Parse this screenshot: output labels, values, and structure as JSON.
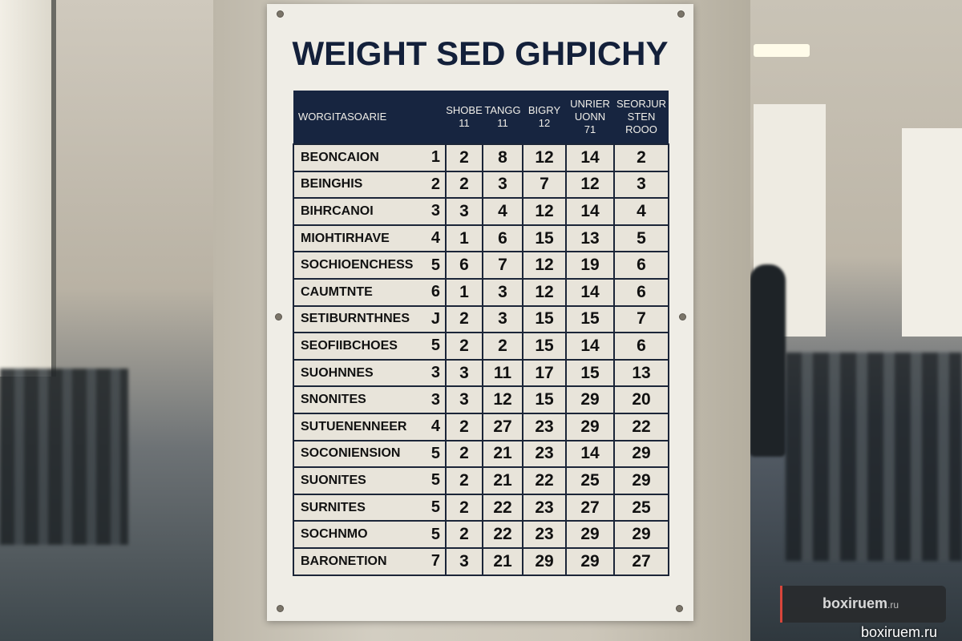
{
  "poster": {
    "title": "WEIGHT SED GHPICHY",
    "headers": [
      {
        "line1": "WORGITASOARIE",
        "line2": "",
        "line3": ""
      },
      {
        "line1": "SHOBE",
        "line2": "11",
        "line3": ""
      },
      {
        "line1": "TANGG",
        "line2": "11",
        "line3": ""
      },
      {
        "line1": "BIGRY",
        "line2": "12",
        "line3": ""
      },
      {
        "line1": "UNRIER",
        "line2": "UONN",
        "line3": "71"
      },
      {
        "line1": "SEORJUR",
        "line2": "STEN",
        "line3": "ROOO"
      }
    ],
    "rows": [
      [
        "BEONCAION",
        "1",
        "2",
        "8",
        "12",
        "14",
        "2"
      ],
      [
        "BEINGHIS",
        "2",
        "2",
        "3",
        "7",
        "12",
        "3"
      ],
      [
        "BIHRCANOI",
        "3",
        "3",
        "4",
        "12",
        "14",
        "4"
      ],
      [
        "MIOHTIRHAVE",
        "4",
        "1",
        "6",
        "15",
        "13",
        "5"
      ],
      [
        "SOCHIOENCHESS",
        "5",
        "6",
        "7",
        "12",
        "19",
        "6"
      ],
      [
        "CAUMTNTE",
        "6",
        "1",
        "3",
        "12",
        "14",
        "6"
      ],
      [
        "SETIBURNTHNES",
        "J",
        "2",
        "3",
        "15",
        "15",
        "7"
      ],
      [
        "SEOFIIBCHOES",
        "5",
        "2",
        "2",
        "15",
        "14",
        "6"
      ],
      [
        "SUOHNNES",
        "3",
        "3",
        "11",
        "17",
        "15",
        "13"
      ],
      [
        "SNONITES",
        "3",
        "3",
        "12",
        "15",
        "29",
        "20"
      ],
      [
        "SUTUENENNEER",
        "4",
        "2",
        "27",
        "23",
        "29",
        "22"
      ],
      [
        "SOCONIENSION",
        "5",
        "2",
        "21",
        "23",
        "14",
        "29"
      ],
      [
        "SUONITES",
        "5",
        "2",
        "21",
        "22",
        "25",
        "29"
      ],
      [
        "SURNITES",
        "5",
        "2",
        "22",
        "23",
        "27",
        "25"
      ],
      [
        "SOCHNMO",
        "5",
        "2",
        "22",
        "23",
        "29",
        "29"
      ],
      [
        "BARONETION",
        "7",
        "3",
        "21",
        "29",
        "29",
        "27"
      ]
    ]
  },
  "watermark": {
    "brand": "boxiruem",
    "tld": ".ru",
    "caption": "boxiruem.ru",
    "accent": "#d8453b"
  }
}
